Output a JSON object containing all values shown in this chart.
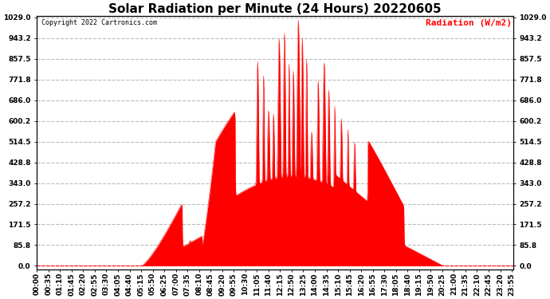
{
  "title": "Solar Radiation per Minute (24 Hours) 20220605",
  "ylabel": "Radiation (W/m2)",
  "copyright": "Copyright 2022 Cartronics.com",
  "bg_color": "#ffffff",
  "plot_bg_color": "#ffffff",
  "fill_color": "#ff0000",
  "line_color": "#ff0000",
  "grid_color": "#bbbbbb",
  "yticks": [
    0.0,
    85.8,
    171.5,
    257.2,
    343.0,
    428.8,
    514.5,
    600.2,
    686.0,
    771.8,
    857.5,
    943.2,
    1029.0
  ],
  "ymax": 1029.0,
  "ymin": 0.0,
  "title_fontsize": 11,
  "tick_fontsize": 6.5,
  "ylabel_fontsize": 8,
  "copyright_fontsize": 6,
  "xtick_interval": 35,
  "n_minutes": 1440
}
